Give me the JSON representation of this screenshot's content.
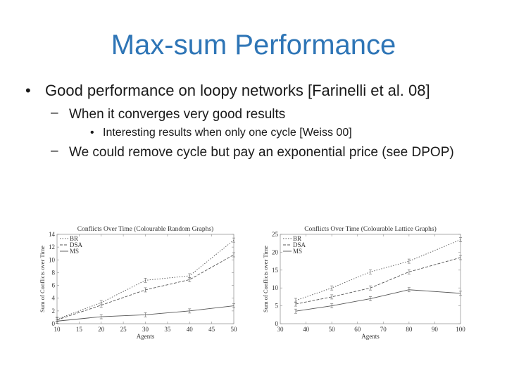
{
  "slide": {
    "title": "Max-sum Performance",
    "bullets": {
      "b1": "Good performance on loopy networks [Farinelli et al. 08]",
      "b1_marker": "•",
      "b2a": "When it converges very good results",
      "b2_marker": "–",
      "b3": "Interesting results when only one cycle [Weiss 00]",
      "b3_marker": "•",
      "b2b": "We could remove cycle but pay an exponential price (see DPOP)"
    }
  },
  "chart_data": [
    {
      "type": "line",
      "title": "Conflicts Over Time (Colourable Random Graphs)",
      "xlabel": "Agents",
      "ylabel": "Sum of Conflicts over Time",
      "xlim": [
        10,
        50
      ],
      "ylim": [
        0,
        14
      ],
      "xticks": [
        10,
        15,
        20,
        25,
        30,
        35,
        40,
        45,
        50
      ],
      "yticks": [
        0,
        2,
        4,
        6,
        8,
        10,
        12,
        14
      ],
      "legend_position": "top-left",
      "x": [
        10,
        20,
        30,
        40,
        50
      ],
      "series": [
        {
          "name": "BR",
          "style": "dotted",
          "values": [
            0.7,
            3.3,
            6.8,
            7.5,
            13.1
          ]
        },
        {
          "name": "DSA",
          "style": "dashed",
          "values": [
            0.6,
            2.9,
            5.3,
            6.9,
            10.8
          ]
        },
        {
          "name": "MS",
          "style": "solid",
          "values": [
            0.4,
            1.1,
            1.4,
            2.0,
            2.8
          ]
        }
      ]
    },
    {
      "type": "line",
      "title": "Conflicts Over Time (Colourable Lattice Graphs)",
      "xlabel": "Agents",
      "ylabel": "Sum of Conflicts over Time",
      "xlim": [
        30,
        100
      ],
      "ylim": [
        0,
        25
      ],
      "xticks": [
        30,
        40,
        50,
        60,
        70,
        80,
        90,
        100
      ],
      "yticks": [
        0,
        5,
        10,
        15,
        20,
        25
      ],
      "legend_position": "top-left",
      "x": [
        36,
        50,
        65,
        80,
        100
      ],
      "series": [
        {
          "name": "BR",
          "style": "dotted",
          "values": [
            6.5,
            10.0,
            14.5,
            17.5,
            23.5
          ]
        },
        {
          "name": "DSA",
          "style": "dashed",
          "values": [
            5.5,
            7.5,
            10.0,
            14.5,
            18.5
          ]
        },
        {
          "name": "MS",
          "style": "solid",
          "values": [
            3.5,
            5.0,
            7.0,
            9.5,
            8.5
          ]
        }
      ]
    }
  ]
}
